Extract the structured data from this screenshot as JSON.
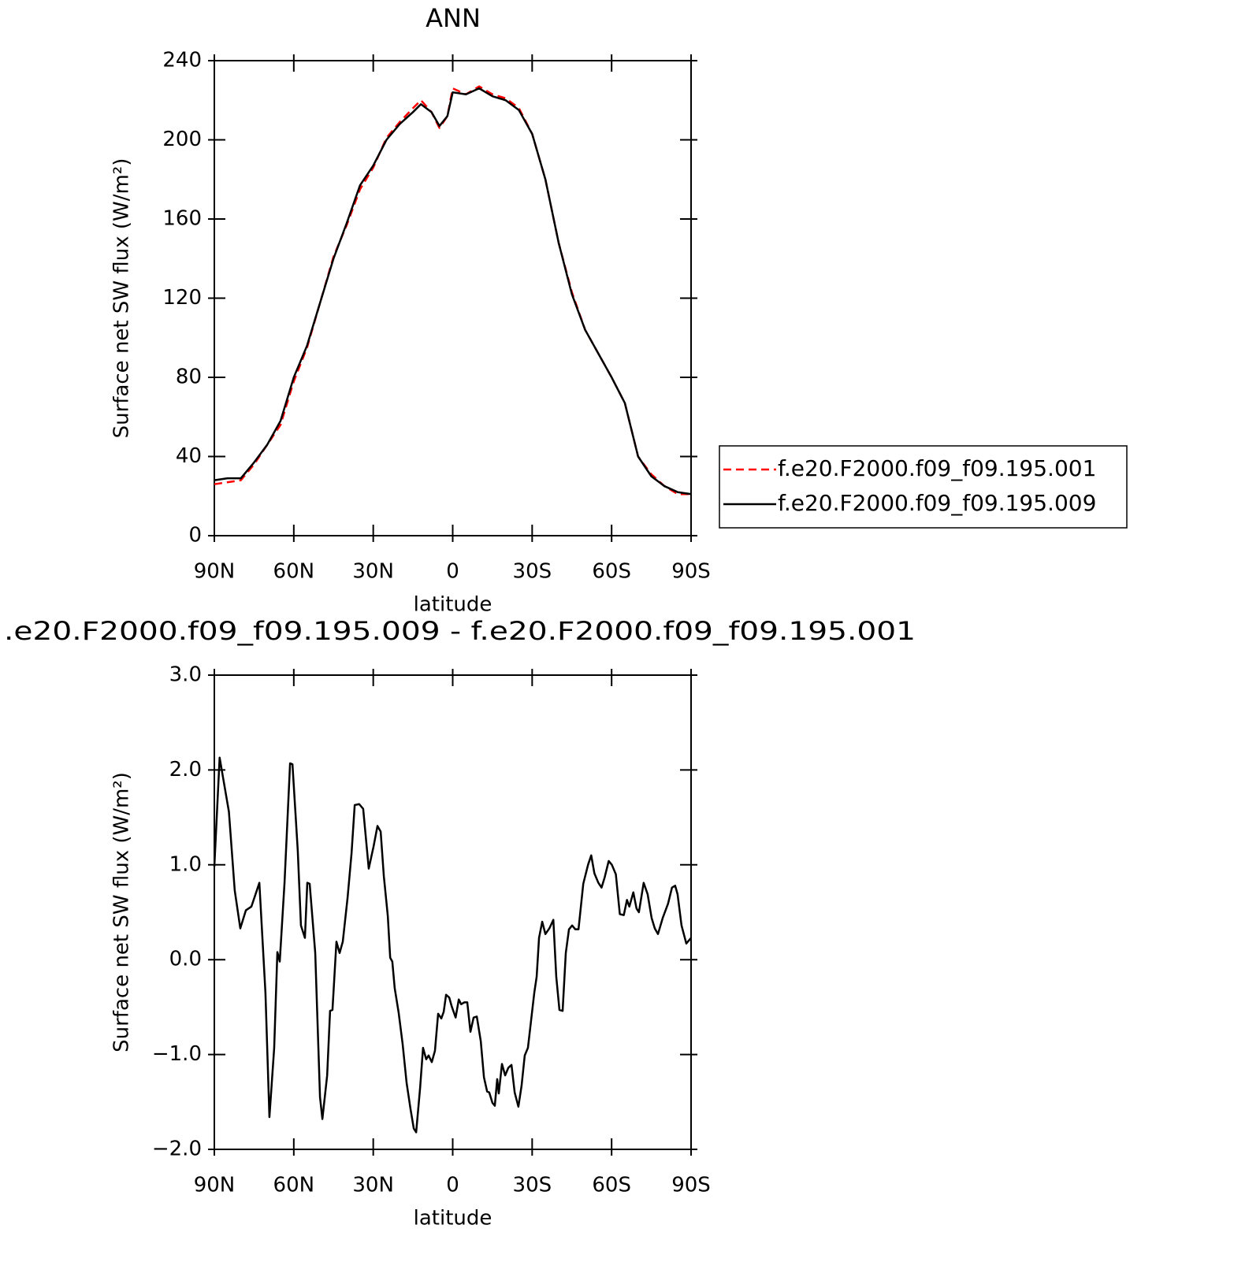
{
  "chart_data": [
    {
      "type": "line",
      "title": "ANN",
      "x_label": "latitude",
      "y_label": "Surface net SW flux (W/m²)",
      "x": [
        90,
        85,
        80,
        75,
        70,
        65,
        60,
        55,
        50,
        45,
        40,
        35,
        30,
        25,
        20,
        15,
        12,
        8,
        5,
        2,
        0,
        -5,
        -10,
        -15,
        -20,
        -25,
        -30,
        -35,
        -40,
        -45,
        -50,
        -55,
        -60,
        -65,
        -70,
        -75,
        -80,
        -85,
        -90
      ],
      "series": [
        {
          "name": "f.e20.F2000.f09_f09.195.001",
          "color": "#ff0000",
          "line_style": "dashed",
          "values": [
            26,
            27,
            28,
            36,
            46,
            56,
            78,
            95,
            118,
            141,
            157,
            175,
            186,
            201,
            209,
            216,
            220,
            214,
            206,
            212,
            226,
            223,
            227,
            223,
            221,
            216,
            203,
            180,
            148,
            123,
            104,
            92,
            80,
            67,
            40,
            31,
            25,
            21,
            21
          ]
        },
        {
          "name": "f.e20.F2000.f09_f09.195.009",
          "color": "#000000",
          "line_style": "solid",
          "values": [
            28,
            29,
            29,
            37,
            46,
            58,
            80,
            96,
            118,
            140,
            158,
            177,
            187,
            200,
            208,
            214,
            218,
            214,
            207,
            212,
            224,
            223,
            226,
            222,
            220,
            215,
            203,
            180,
            148,
            122,
            104,
            92,
            80,
            67,
            40,
            30,
            25,
            22,
            21
          ]
        }
      ],
      "xlim": [
        90,
        -90
      ],
      "xticks": [
        {
          "value": 90,
          "label": "90N"
        },
        {
          "value": 60,
          "label": "60N"
        },
        {
          "value": 30,
          "label": "30N"
        },
        0,
        {
          "value": -30,
          "label": "30S"
        },
        {
          "value": -60,
          "label": "60S"
        },
        {
          "value": -90,
          "label": "90S"
        }
      ],
      "ylim": [
        0,
        240
      ],
      "yticks": [
        0,
        40,
        80,
        120,
        160,
        200,
        240
      ],
      "grid": false,
      "legend": "right"
    },
    {
      "type": "line",
      "title": ".e20.F2000.f09_f09.195.009 - f.e20.F2000.f09_f09.195.001",
      "x_label": "latitude",
      "y_label": "Surface net SW flux (W/m²)",
      "x": [
        90,
        88,
        84.5,
        82.3,
        80.2,
        78.1,
        76,
        73,
        70.7,
        69.2,
        67.4,
        66.2,
        65.3,
        63.5,
        61.4,
        60.5,
        58.5,
        57.3,
        55.8,
        54.9,
        54,
        51.9,
        50.1,
        49.2,
        47.4,
        46.3,
        45.4,
        43.9,
        42.7,
        41.5,
        39.7,
        38.2,
        37,
        35.3,
        33.8,
        31.7,
        29.9,
        28.4,
        27.2,
        26,
        24.5,
        23.6,
        22.8,
        21.9,
        20.4,
        18.9,
        17.4,
        15.9,
        14.7,
        13.8,
        12.3,
        11.2,
        10,
        9.1,
        7.9,
        6.7,
        5.5,
        4.3,
        3.4,
        2.5,
        1.3,
        0.4,
        -1.1,
        -2.3,
        -3.2,
        -4.4,
        -5.5,
        -6.7,
        -7.9,
        -9.1,
        -10.6,
        -11.8,
        -13,
        -13.8,
        -15,
        -15.9,
        -16.8,
        -17.4,
        -18.6,
        -19.8,
        -21,
        -22.2,
        -23.4,
        -24.8,
        -26,
        -27.2,
        -28.4,
        -29.6,
        -30.8,
        -31.7,
        -32.6,
        -33.8,
        -35,
        -36.5,
        -38,
        -39.1,
        -40.3,
        -41.5,
        -42.7,
        -43.9,
        -45.1,
        -46.3,
        -47.5,
        -49.3,
        -51.1,
        -52.3,
        -53.5,
        -55,
        -56.2,
        -57.4,
        -58.9,
        -60.1,
        -61.6,
        -63.1,
        -64.6,
        -65.8,
        -66.7,
        -68.2,
        -69.4,
        -70.3,
        -72.1,
        -73.6,
        -75.1,
        -76.3,
        -77.5,
        -79.3,
        -81.3,
        -82.8,
        -84,
        -84.9,
        -86.4,
        -88.2,
        -90
      ],
      "series": [
        {
          "name": null,
          "color": "#000000",
          "line_style": "solid",
          "values": [
            0.98,
            2.13,
            1.56,
            0.73,
            0.33,
            0.52,
            0.56,
            0.81,
            -0.35,
            -1.66,
            -0.93,
            0.08,
            -0.02,
            0.81,
            2.07,
            2.06,
            1.15,
            0.36,
            0.23,
            0.81,
            0.8,
            0.07,
            -1.45,
            -1.68,
            -1.22,
            -0.54,
            -0.53,
            0.19,
            0.07,
            0.19,
            0.65,
            1.12,
            1.63,
            1.64,
            1.59,
            0.96,
            1.19,
            1.41,
            1.35,
            0.88,
            0.46,
            0.02,
            -0.02,
            -0.3,
            -0.56,
            -0.89,
            -1.3,
            -1.58,
            -1.78,
            -1.82,
            -1.35,
            -0.93,
            -1.05,
            -1.01,
            -1.08,
            -0.96,
            -0.57,
            -0.62,
            -0.55,
            -0.37,
            -0.4,
            -0.49,
            -0.61,
            -0.42,
            -0.47,
            -0.45,
            -0.45,
            -0.76,
            -0.61,
            -0.6,
            -0.86,
            -1.24,
            -1.39,
            -1.4,
            -1.51,
            -1.54,
            -1.26,
            -1.41,
            -1.1,
            -1.22,
            -1.14,
            -1.11,
            -1.4,
            -1.55,
            -1.33,
            -1.01,
            -0.93,
            -0.64,
            -0.35,
            -0.18,
            0.23,
            0.4,
            0.27,
            0.33,
            0.42,
            -0.18,
            -0.53,
            -0.54,
            0.07,
            0.32,
            0.36,
            0.32,
            0.32,
            0.8,
            1.0,
            1.1,
            0.91,
            0.81,
            0.76,
            0.87,
            1.04,
            1.0,
            0.9,
            0.48,
            0.47,
            0.63,
            0.56,
            0.71,
            0.54,
            0.5,
            0.81,
            0.69,
            0.44,
            0.33,
            0.27,
            0.44,
            0.59,
            0.76,
            0.78,
            0.69,
            0.36,
            0.17,
            0.23
          ]
        }
      ],
      "xlim": [
        90,
        -90
      ],
      "xticks": [
        {
          "value": 90,
          "label": "90N"
        },
        {
          "value": 60,
          "label": "60N"
        },
        {
          "value": 30,
          "label": "30N"
        },
        0,
        {
          "value": -30,
          "label": "30S"
        },
        {
          "value": -60,
          "label": "60S"
        },
        {
          "value": -90,
          "label": "90S"
        }
      ],
      "ylim": [
        -2,
        3
      ],
      "yticks": [
        {
          "value": -2,
          "label": "−2.0"
        },
        {
          "value": -1,
          "label": "−1.0"
        },
        {
          "value": 0,
          "label": "0.0"
        },
        {
          "value": 1,
          "label": "1.0"
        },
        {
          "value": 2,
          "label": "2.0"
        },
        {
          "value": 3,
          "label": "3.0"
        }
      ],
      "grid": false
    }
  ]
}
